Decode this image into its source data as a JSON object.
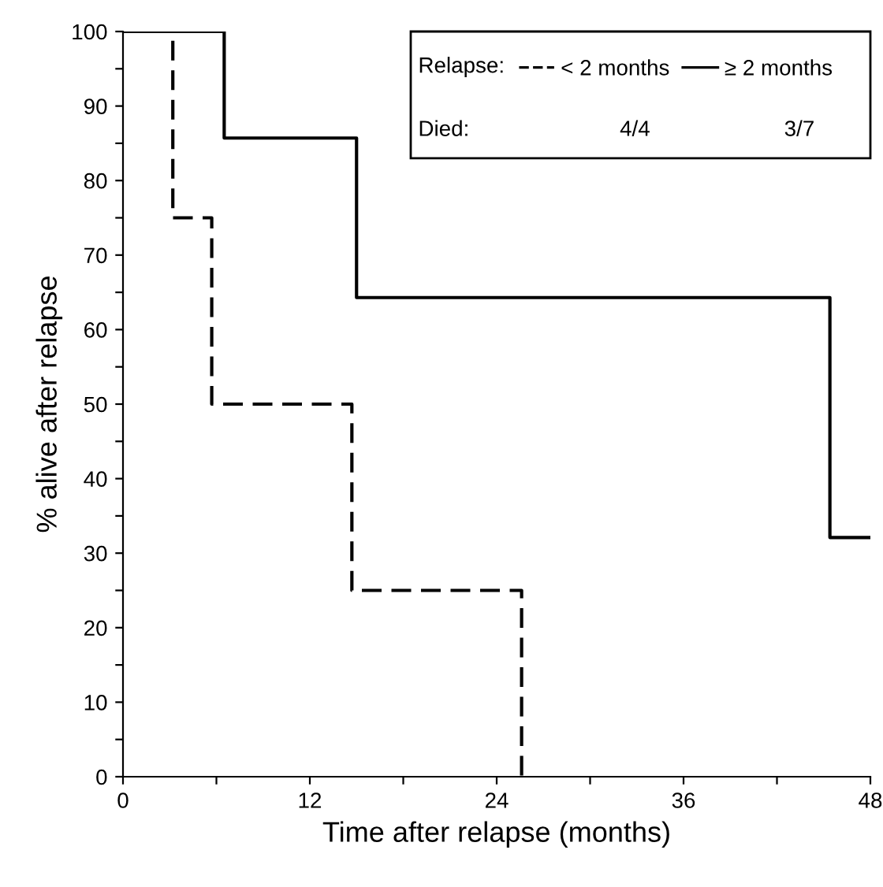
{
  "chart_data": {
    "type": "step",
    "xlabel": "Time after relapse (months)",
    "ylabel": "% alive after relapse",
    "legend_title": "Relapse:",
    "legend": "top right",
    "grid": false,
    "series": [
      {
        "name": "< 2 months",
        "color": "#000000",
        "line_style": "dashed",
        "x": [
          0,
          3.2,
          5.7,
          14.7,
          25.6
        ],
        "values": [
          100,
          75,
          50,
          25,
          0
        ]
      },
      {
        "name": "≥ 2 months",
        "color": "#000000",
        "line_style": "solid",
        "x": [
          0,
          6.5,
          15,
          45.4,
          48
        ],
        "values": [
          100,
          85.7,
          64.3,
          32.1,
          32.1
        ]
      }
    ],
    "annotations": [
      "Died:",
      "4/4",
      "3/7"
    ],
    "xlim": [
      0,
      48
    ],
    "xticks": [
      0,
      {
        "value": 6,
        "label": null
      },
      12,
      {
        "value": 18,
        "label": null
      },
      24,
      {
        "value": 30,
        "label": null
      },
      36,
      {
        "value": 42,
        "label": null
      },
      48
    ],
    "ylim": [
      0,
      100
    ],
    "yticks": [
      0,
      {
        "value": 5,
        "label": null
      },
      10,
      {
        "value": 15,
        "label": null
      },
      20,
      {
        "value": 25,
        "label": null
      },
      30,
      {
        "value": 35,
        "label": null
      },
      40,
      {
        "value": 45,
        "label": null
      },
      50,
      {
        "value": 55,
        "label": null
      },
      60,
      {
        "value": 65,
        "label": null
      },
      70,
      {
        "value": 75,
        "label": null
      },
      80,
      {
        "value": 85,
        "label": null
      },
      90,
      {
        "value": 95,
        "label": null
      },
      100
    ]
  }
}
